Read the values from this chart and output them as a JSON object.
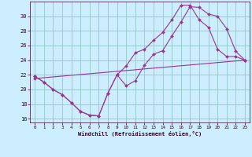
{
  "xlabel": "Windchill (Refroidissement éolien,°C)",
  "bg_color": "#cceeff",
  "grid_color": "#99cccc",
  "line_color": "#993399",
  "ylim": [
    15.5,
    32.0
  ],
  "xlim": [
    -0.5,
    23.5
  ],
  "yticks": [
    16,
    18,
    20,
    22,
    24,
    26,
    28,
    30
  ],
  "xticks": [
    0,
    1,
    2,
    3,
    4,
    5,
    6,
    7,
    8,
    9,
    10,
    11,
    12,
    13,
    14,
    15,
    16,
    17,
    18,
    19,
    20,
    21,
    22,
    23
  ],
  "line1_x": [
    0,
    1,
    2,
    3,
    4,
    5,
    6,
    7,
    8,
    9,
    10,
    11,
    12,
    13,
    14,
    15,
    16,
    17,
    18,
    19,
    20,
    21,
    22,
    23
  ],
  "line1_y": [
    21.8,
    21.0,
    20.0,
    19.3,
    18.2,
    17.0,
    16.5,
    16.4,
    19.5,
    22.0,
    20.5,
    21.2,
    23.3,
    24.8,
    25.3,
    27.3,
    29.2,
    31.3,
    31.2,
    30.3,
    30.0,
    28.3,
    25.2,
    24.0
  ],
  "line2_x": [
    0,
    1,
    2,
    3,
    4,
    5,
    6,
    7,
    8,
    9,
    10,
    11,
    12,
    13,
    14,
    15,
    16,
    17,
    18,
    19,
    20,
    21,
    22,
    23
  ],
  "line2_y": [
    21.8,
    21.0,
    20.0,
    19.3,
    18.2,
    17.0,
    16.5,
    16.4,
    19.5,
    22.0,
    23.2,
    25.0,
    25.5,
    26.7,
    27.8,
    29.5,
    31.5,
    31.5,
    29.5,
    28.5,
    25.5,
    24.5,
    24.5,
    24.0
  ],
  "line3_x": [
    0,
    23
  ],
  "line3_y": [
    21.5,
    24.0
  ]
}
